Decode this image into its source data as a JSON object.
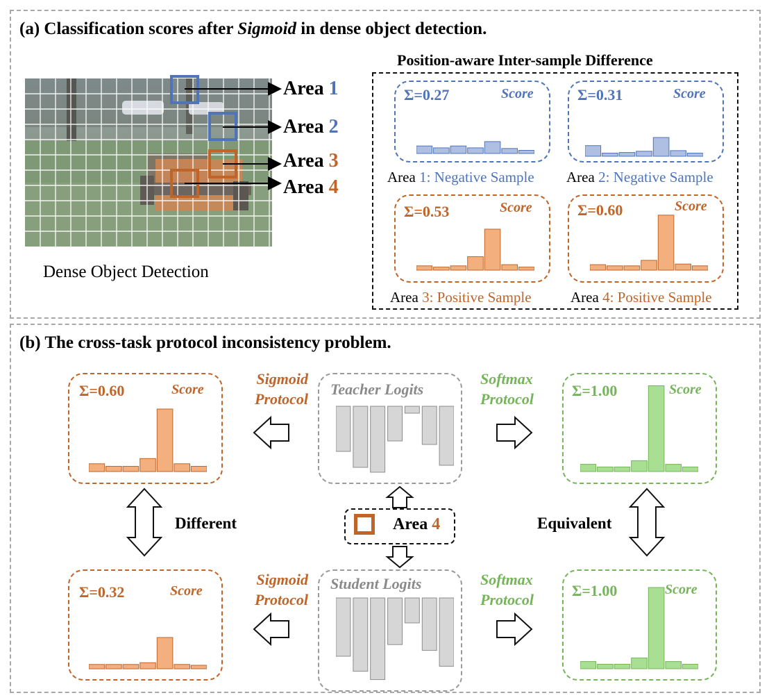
{
  "colors": {
    "blue": "#4f74b8",
    "blue_fill": "#aebfe3",
    "orange": "#c0652a",
    "orange_fill": "#f3b07e",
    "green": "#76b45a",
    "green_fill": "#a9df93",
    "gray_fill": "#d6d6d6",
    "gray_text": "#8a8a8a"
  },
  "panel_a": {
    "title_prefix": "(a) Classification scores after ",
    "title_emph": "Sigmoid",
    "title_suffix": " in dense object detection.",
    "image_caption": "Dense Object Detection",
    "area_word": "Area",
    "area_numbers": [
      "1",
      "2",
      "3",
      "4"
    ],
    "pisd_title": "Position-aware Inter-sample Difference",
    "score_label": "Score",
    "cards": [
      {
        "sum": "Σ=0.27",
        "area": "Area",
        "num": "1",
        "desc": ": Negative Sample",
        "bars": [
          0.12,
          0.09,
          0.12,
          0.09,
          0.19,
          0.08,
          0.05
        ]
      },
      {
        "sum": "Σ=0.31",
        "area": "Area",
        "num": "2",
        "desc": ": Negative Sample",
        "bars": [
          0.17,
          0.05,
          0.06,
          0.08,
          0.3,
          0.09,
          0.05
        ]
      },
      {
        "sum": "Σ=0.53",
        "area": "Area",
        "num": "3",
        "desc": ": Positive Sample",
        "bars": [
          0.07,
          0.05,
          0.07,
          0.22,
          0.67,
          0.09,
          0.05
        ]
      },
      {
        "sum": "Σ=0.60",
        "area": "Area",
        "num": "4",
        "desc": ": Positive Sample",
        "bars": [
          0.09,
          0.07,
          0.07,
          0.16,
          0.9,
          0.1,
          0.07
        ]
      }
    ]
  },
  "panel_b": {
    "title": "(b) The cross-task protocol inconsistency problem.",
    "sigmoid_line1": "Sigmoid",
    "sigmoid_line2": "Protocol",
    "softmax_line1": "Softmax",
    "softmax_line2": "Protocol",
    "teacher_label": "Teacher Logits",
    "student_label": "Student Logits",
    "area_word": "Area",
    "area_num": "4",
    "different_label": "Different",
    "equivalent_label": "Equivalent",
    "score_label": "Score",
    "sig_top": {
      "sum": "Σ=0.60",
      "bars": [
        0.09,
        0.06,
        0.06,
        0.15,
        0.72,
        0.09,
        0.06
      ]
    },
    "sig_bottom": {
      "sum": "Σ=0.32",
      "bars": [
        0.05,
        0.05,
        0.05,
        0.07,
        0.36,
        0.05,
        0.04
      ]
    },
    "soft_top": {
      "sum": "Σ=1.00",
      "bars": [
        0.08,
        0.05,
        0.05,
        0.12,
        0.95,
        0.08,
        0.05
      ]
    },
    "soft_bottom": {
      "sum": "Σ=1.00",
      "bars": [
        0.08,
        0.05,
        0.05,
        0.12,
        0.9,
        0.08,
        0.05
      ]
    },
    "teacher_logits": [
      -0.65,
      -0.88,
      -0.95,
      -0.5,
      -0.1,
      -0.55,
      -0.85
    ],
    "student_logits": [
      -0.7,
      -0.88,
      -0.98,
      -0.56,
      -0.3,
      -0.63,
      -0.82
    ]
  }
}
